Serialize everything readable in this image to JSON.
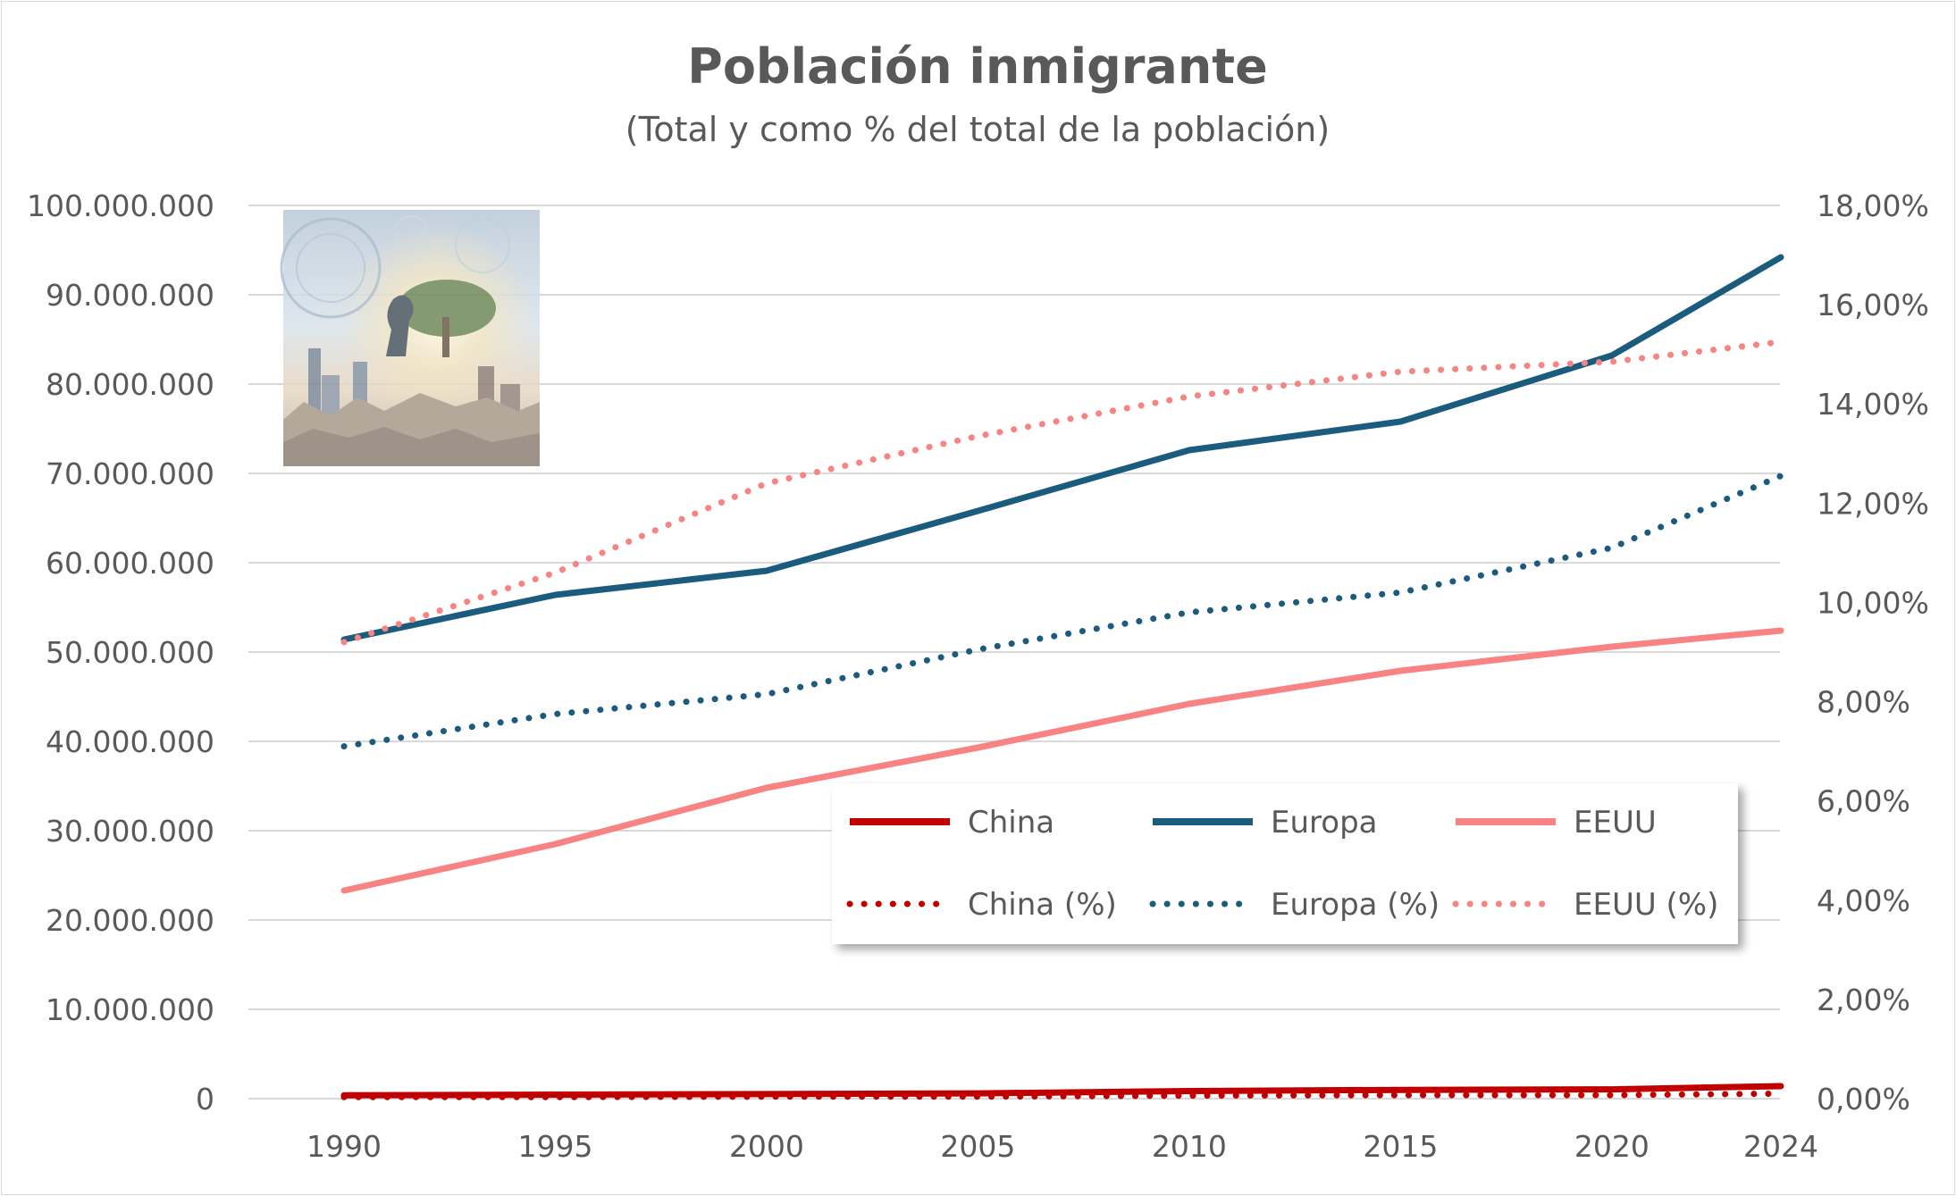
{
  "chart_data": {
    "type": "line",
    "title": "Población inmigrante",
    "subtitle": "(Total y como % del total de la población)",
    "x": [
      1990,
      1995,
      2000,
      2005,
      2010,
      2015,
      2020,
      2024
    ],
    "x_tick_labels": [
      "1990",
      "1995",
      "2000",
      "2005",
      "2010",
      "2015",
      "2020",
      "2024"
    ],
    "y_left": {
      "lim": [
        0,
        100000000
      ],
      "ticks": [
        0,
        10000000,
        20000000,
        30000000,
        40000000,
        50000000,
        60000000,
        70000000,
        80000000,
        90000000,
        100000000
      ],
      "tick_labels": [
        "0",
        "10.000.000",
        "20.000.000",
        "30.000.000",
        "40.000.000",
        "50.000.000",
        "60.000.000",
        "70.000.000",
        "80.000.000",
        "90.000.000",
        "100.000.000"
      ]
    },
    "y_right": {
      "lim": [
        0,
        18
      ],
      "ticks": [
        0,
        2,
        4,
        6,
        8,
        10,
        12,
        14,
        16,
        18
      ],
      "tick_labels": [
        "0,00%",
        "2,00%",
        "4,00%",
        "6,00%",
        "8,00%",
        "10,00%",
        "12,00%",
        "14,00%",
        "16,00%",
        "18,00%"
      ]
    },
    "grid": "horizontal",
    "legend_position": "inside-bottom-right",
    "series": [
      {
        "name": "China",
        "axis": "left",
        "style": "solid",
        "color": "#C00000",
        "values": [
          380000,
          450000,
          510000,
          590000,
          850000,
          980000,
          1040000,
          1400000
        ]
      },
      {
        "name": "Europa",
        "axis": "left",
        "style": "solid",
        "color": "#1B5C7E",
        "values": [
          51400000,
          56400000,
          59100000,
          65800000,
          72600000,
          75800000,
          83200000,
          94200000
        ]
      },
      {
        "name": "EEUU",
        "axis": "left",
        "style": "solid",
        "color": "#F98282",
        "values": [
          23300000,
          28500000,
          34800000,
          39300000,
          44200000,
          47900000,
          50600000,
          52400000
        ]
      },
      {
        "name": "China (%)",
        "axis": "right",
        "style": "dotted",
        "color": "#C00000",
        "values": [
          0.03,
          0.03,
          0.04,
          0.04,
          0.06,
          0.07,
          0.07,
          0.1
        ]
      },
      {
        "name": "Europa (%)",
        "axis": "right",
        "style": "dotted",
        "color": "#1B5C7E",
        "values": [
          7.1,
          7.75,
          8.15,
          9.05,
          9.8,
          10.2,
          11.1,
          12.55
        ]
      },
      {
        "name": "EEUU (%)",
        "axis": "right",
        "style": "dotted",
        "color": "#F98282",
        "values": [
          9.2,
          10.6,
          12.4,
          13.35,
          14.15,
          14.65,
          14.85,
          15.25
        ]
      }
    ]
  }
}
